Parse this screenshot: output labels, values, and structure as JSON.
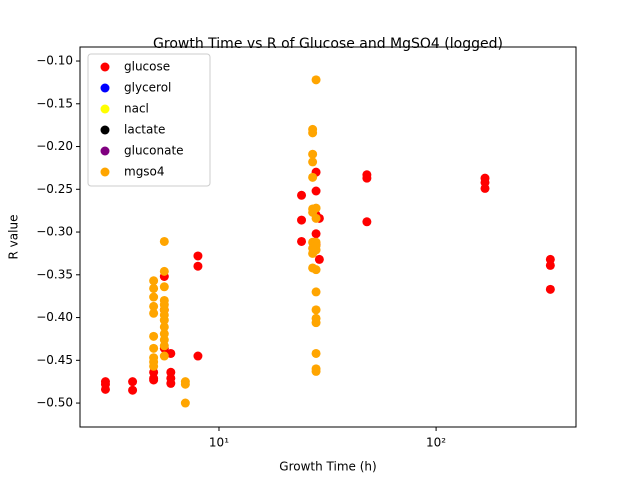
{
  "chart_data": {
    "type": "scatter",
    "title": "Growth Time vs R of Glucose and MgSO4 (logged)",
    "x_label": "Growth Time (h)",
    "y_label": "R value",
    "x_log": true,
    "xlim": [
      2.29,
      441
    ],
    "ylim": [
      -0.528,
      -0.0836
    ],
    "xticks": [
      {
        "value": 10,
        "label": "10¹"
      },
      {
        "value": 100,
        "label": "10²"
      }
    ],
    "yticks": [
      {
        "value": -0.1,
        "label": "−0.10"
      },
      {
        "value": -0.15,
        "label": "−0.15"
      },
      {
        "value": -0.2,
        "label": "−0.20"
      },
      {
        "value": -0.25,
        "label": "−0.25"
      },
      {
        "value": -0.3,
        "label": "−0.30"
      },
      {
        "value": -0.35,
        "label": "−0.35"
      },
      {
        "value": -0.4,
        "label": "−0.40"
      },
      {
        "value": -0.45,
        "label": "−0.45"
      },
      {
        "value": -0.5,
        "label": "−0.50"
      }
    ],
    "legend": "upper left",
    "series": [
      {
        "name": "glucose",
        "color": "#ff0000",
        "x": [
          3,
          3,
          3,
          4,
          4,
          5,
          5,
          5,
          5.6,
          5.6,
          5.6,
          6,
          6,
          6,
          6,
          8,
          8,
          8,
          24,
          24,
          24,
          28,
          28,
          28,
          28,
          28,
          29,
          29,
          48,
          48,
          48,
          168,
          168,
          168,
          336,
          336,
          336
        ],
        "values": [
          -0.475,
          -0.478,
          -0.484,
          -0.475,
          -0.485,
          -0.464,
          -0.471,
          -0.473,
          -0.352,
          -0.391,
          -0.436,
          -0.442,
          -0.464,
          -0.471,
          -0.477,
          -0.328,
          -0.34,
          -0.445,
          -0.257,
          -0.286,
          -0.311,
          -0.23,
          -0.252,
          -0.28,
          -0.302,
          -0.315,
          -0.284,
          -0.332,
          -0.233,
          -0.237,
          -0.288,
          -0.237,
          -0.242,
          -0.249,
          -0.332,
          -0.339,
          -0.367
        ]
      },
      {
        "name": "glycerol",
        "color": "#0000ff",
        "x": [],
        "values": []
      },
      {
        "name": "nacl",
        "color": "#ffff00",
        "x": [],
        "values": []
      },
      {
        "name": "lactate",
        "color": "#000000",
        "x": [],
        "values": []
      },
      {
        "name": "gluconate",
        "color": "#800080",
        "x": [],
        "values": []
      },
      {
        "name": "mgso4",
        "color": "#ffa500",
        "x": [
          5,
          5,
          5,
          5,
          5,
          5,
          5,
          5,
          5,
          5,
          5.6,
          5.6,
          5.6,
          5.6,
          5.6,
          5.6,
          5.6,
          5.6,
          5.6,
          5.6,
          5.6,
          5.6,
          5.6,
          7,
          7,
          7,
          27,
          27,
          27,
          27,
          27,
          27,
          27,
          27,
          27,
          27,
          27,
          28,
          28,
          28,
          28,
          28,
          28,
          28,
          28,
          28,
          28,
          28,
          28,
          28,
          28
        ],
        "values": [
          -0.357,
          -0.366,
          -0.376,
          -0.387,
          -0.395,
          -0.422,
          -0.436,
          -0.447,
          -0.452,
          -0.457,
          -0.311,
          -0.346,
          -0.364,
          -0.38,
          -0.385,
          -0.391,
          -0.397,
          -0.403,
          -0.411,
          -0.419,
          -0.426,
          -0.433,
          -0.445,
          -0.475,
          -0.478,
          -0.5,
          -0.18,
          -0.184,
          -0.209,
          -0.218,
          -0.236,
          -0.273,
          -0.277,
          -0.312,
          -0.319,
          -0.325,
          -0.342,
          -0.122,
          -0.272,
          -0.284,
          -0.312,
          -0.316,
          -0.321,
          -0.344,
          -0.37,
          -0.391,
          -0.401,
          -0.406,
          -0.442,
          -0.46,
          -0.463
        ]
      }
    ]
  }
}
